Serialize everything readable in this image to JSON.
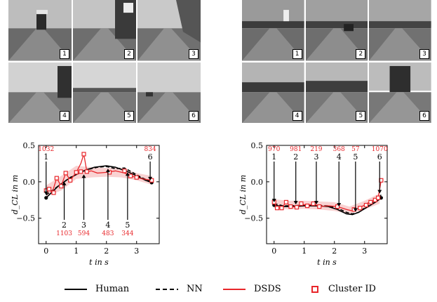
{
  "tile_numbers": [
    "1",
    "2",
    "3",
    "4",
    "5",
    "6"
  ],
  "legend": {
    "human": "Human",
    "nn": "NN",
    "dsds": "DSDS",
    "cluster": "Cluster ID"
  },
  "colors": {
    "human": "#000000",
    "nn": "#000000",
    "dsds": "#e8262a",
    "band": "#f7c7c7"
  },
  "chart_data": [
    {
      "type": "line",
      "title": "",
      "xlabel": "t in s",
      "ylabel": "d_CL in m",
      "xlim": [
        -0.25,
        3.75
      ],
      "ylim": [
        -0.85,
        0.5
      ],
      "xticks": [
        0,
        1,
        2,
        3
      ],
      "yticks": [
        0.5,
        0.0,
        -0.5
      ],
      "ytick_labels": [
        "0.5",
        "0.0",
        "−0.5"
      ],
      "grid": false,
      "series": [
        {
          "name": "Human",
          "style": "solid",
          "x": [
            0,
            0.15,
            0.4,
            0.7,
            1.0,
            1.3,
            1.6,
            2.0,
            2.3,
            2.7,
            3.0,
            3.3,
            3.5
          ],
          "y": [
            -0.22,
            -0.16,
            -0.06,
            0.03,
            0.1,
            0.16,
            0.2,
            0.22,
            0.2,
            0.14,
            0.08,
            0.02,
            -0.01
          ]
        },
        {
          "name": "NN",
          "style": "dashed",
          "x": [
            0,
            0.2,
            0.5,
            0.8,
            1.1,
            1.4,
            1.7,
            2.0,
            2.3,
            2.6,
            2.9,
            3.2,
            3.5
          ],
          "y": [
            -0.18,
            -0.12,
            -0.03,
            0.06,
            0.12,
            0.17,
            0.2,
            0.21,
            0.18,
            0.19,
            0.12,
            0.05,
            0.0
          ]
        },
        {
          "name": "DSDS",
          "style": "solid",
          "x": [
            0,
            0.1,
            0.2,
            0.35,
            0.5,
            0.65,
            0.8,
            1.0,
            1.15,
            1.25,
            1.35,
            1.5,
            1.7,
            2.0,
            2.3,
            2.6,
            2.8,
            3.0,
            3.2,
            3.5
          ],
          "y": [
            -0.12,
            -0.1,
            -0.15,
            0.05,
            -0.06,
            0.12,
            0.02,
            0.13,
            0.25,
            0.38,
            0.14,
            0.15,
            0.12,
            0.13,
            0.15,
            0.12,
            0.08,
            0.06,
            0.04,
            0.02
          ]
        }
      ],
      "cluster_markers": {
        "x": [
          0,
          0.1,
          0.25,
          0.35,
          0.5,
          0.65,
          0.8,
          1.0,
          1.15,
          1.25,
          1.35,
          2.1,
          2.6,
          2.8,
          3.0,
          3.5
        ],
        "y": [
          -0.12,
          -0.1,
          -0.15,
          0.05,
          -0.06,
          0.12,
          0.02,
          0.13,
          0.14,
          0.38,
          0.14,
          0.13,
          0.15,
          0.08,
          0.06,
          0.02
        ]
      },
      "band": {
        "x": [
          0,
          0.5,
          1.0,
          1.5,
          2.0,
          2.5,
          3.0,
          3.5
        ],
        "y_low": [
          -0.2,
          -0.12,
          0.04,
          0.06,
          0.07,
          0.06,
          0.02,
          -0.04
        ],
        "y_high": [
          -0.05,
          0.08,
          0.22,
          0.2,
          0.19,
          0.19,
          0.12,
          0.08
        ]
      },
      "annotations": [
        {
          "event": "1",
          "cluster": "1032",
          "x": 0.0,
          "side": "above",
          "y": -0.2
        },
        {
          "event": "2",
          "cluster": "1103",
          "x": 0.6,
          "side": "below",
          "y": 0.02
        },
        {
          "event": "3",
          "cluster": "594",
          "x": 1.25,
          "side": "below",
          "y": 0.12
        },
        {
          "event": "4",
          "cluster": "483",
          "x": 2.05,
          "side": "below",
          "y": 0.2
        },
        {
          "event": "5",
          "cluster": "344",
          "x": 2.7,
          "side": "below",
          "y": 0.15
        },
        {
          "event": "6",
          "cluster": "834",
          "x": 3.45,
          "side": "above",
          "y": 0.0
        }
      ]
    },
    {
      "type": "line",
      "title": "",
      "xlabel": "t in s",
      "ylabel": "d_CL in m",
      "xlim": [
        -0.25,
        3.75
      ],
      "ylim": [
        -0.85,
        0.5
      ],
      "xticks": [
        0,
        1,
        2,
        3
      ],
      "yticks": [
        0.5,
        0.0,
        -0.5
      ],
      "ytick_labels": [
        "0.5",
        "0.0",
        "−0.5"
      ],
      "grid": false,
      "series": [
        {
          "name": "Human",
          "style": "solid",
          "x": [
            0,
            0.3,
            0.6,
            1.0,
            1.4,
            1.8,
            2.1,
            2.4,
            2.6,
            2.8,
            3.0,
            3.2,
            3.4,
            3.55
          ],
          "y": [
            -0.32,
            -0.34,
            -0.34,
            -0.33,
            -0.33,
            -0.34,
            -0.38,
            -0.44,
            -0.45,
            -0.42,
            -0.37,
            -0.32,
            -0.27,
            -0.22
          ]
        },
        {
          "name": "NN",
          "style": "dashed",
          "x": [
            0,
            0.3,
            0.6,
            1.0,
            1.4,
            1.8,
            2.1,
            2.4,
            2.6,
            2.8,
            3.0,
            3.2,
            3.4,
            3.55
          ],
          "y": [
            -0.3,
            -0.33,
            -0.33,
            -0.32,
            -0.33,
            -0.33,
            -0.36,
            -0.42,
            -0.44,
            -0.42,
            -0.36,
            -0.3,
            -0.25,
            -0.18
          ]
        },
        {
          "name": "DSDS",
          "style": "solid",
          "x": [
            0,
            0.1,
            0.25,
            0.4,
            0.55,
            0.75,
            0.9,
            1.1,
            1.3,
            1.5,
            1.8,
            2.1,
            2.4,
            2.6,
            2.8,
            3.0,
            3.15,
            3.3,
            3.45,
            3.55
          ],
          "y": [
            -0.28,
            -0.36,
            -0.36,
            -0.28,
            -0.34,
            -0.35,
            -0.3,
            -0.33,
            -0.3,
            -0.34,
            -0.33,
            -0.34,
            -0.38,
            -0.4,
            -0.36,
            -0.32,
            -0.28,
            -0.25,
            -0.22,
            0.02
          ]
        }
      ],
      "cluster_markers": {
        "x": [
          0,
          0.1,
          0.25,
          0.4,
          0.55,
          0.75,
          0.9,
          1.1,
          1.3,
          1.5,
          2.1,
          2.65,
          2.85,
          3.05,
          3.2,
          3.35,
          3.45,
          3.55
        ],
        "y": [
          -0.28,
          -0.36,
          -0.36,
          -0.28,
          -0.34,
          -0.35,
          -0.3,
          -0.33,
          -0.3,
          -0.34,
          -0.34,
          -0.38,
          -0.36,
          -0.32,
          -0.28,
          -0.25,
          -0.22,
          0.02
        ]
      },
      "band": {
        "x": [
          0,
          0.5,
          1.0,
          1.5,
          2.0,
          2.5,
          3.0,
          3.5
        ],
        "y_low": [
          -0.36,
          -0.38,
          -0.37,
          -0.38,
          -0.4,
          -0.44,
          -0.38,
          -0.3
        ],
        "y_high": [
          -0.24,
          -0.26,
          -0.26,
          -0.27,
          -0.28,
          -0.34,
          -0.26,
          -0.16
        ]
      },
      "annotations": [
        {
          "event": "1",
          "cluster": "970",
          "x": 0.0,
          "side": "above",
          "y": -0.3
        },
        {
          "event": "2",
          "cluster": "981",
          "x": 0.72,
          "side": "above",
          "y": -0.33
        },
        {
          "event": "3",
          "cluster": "219",
          "x": 1.4,
          "side": "above",
          "y": -0.33
        },
        {
          "event": "4",
          "cluster": "368",
          "x": 2.15,
          "side": "above",
          "y": -0.36
        },
        {
          "event": "5",
          "cluster": "57",
          "x": 2.7,
          "side": "above",
          "y": -0.43
        },
        {
          "event": "6",
          "cluster": "1070",
          "x": 3.5,
          "side": "above",
          "y": -0.18
        }
      ]
    }
  ]
}
